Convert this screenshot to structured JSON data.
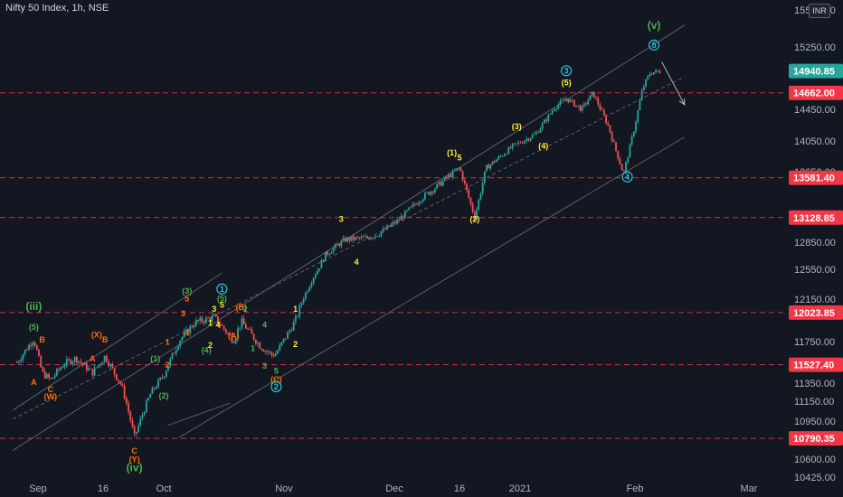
{
  "header": {
    "title": "Nifty 50 Index, 1h, NSE",
    "currency": "INR"
  },
  "colors": {
    "background": "#131722",
    "up": "#26a69a",
    "down": "#ef5350",
    "level_line": "#f23645",
    "channel": "#5d606b",
    "price_badge": "#26a69a",
    "level_badge": "#f23645",
    "wave_green": "#4caf50",
    "wave_yellow": "#ffeb3b",
    "wave_orange": "#ff6d00",
    "wave_cyan": "#26c6da"
  },
  "chart_data": {
    "type": "line",
    "title": "Nifty 50 Index, 1h, NSE",
    "y_axis_ticks": [
      15550.0,
      15250.0,
      14450.0,
      14050.0,
      13650.0,
      12850.0,
      12550.0,
      12150.0,
      11750.0,
      11350.0,
      11150.0,
      10950.0,
      10600.0,
      10425.0
    ],
    "ylim": [
      10380,
      15700
    ],
    "x_axis_ticks": [
      "Sep",
      "16",
      "Oct",
      "Nov",
      "Dec",
      "16",
      "2021",
      "Feb",
      "Mar"
    ],
    "current_price": 14940.85,
    "horizontal_levels": [
      14662.0,
      13581.4,
      13128.85,
      12023.85,
      11527.4,
      10790.35
    ],
    "price_path": [
      [
        "2020-08-27",
        11550
      ],
      [
        "2020-08-31",
        11780
      ],
      [
        "2020-09-02",
        11450
      ],
      [
        "2020-09-04",
        11380
      ],
      [
        "2020-09-07",
        11530
      ],
      [
        "2020-09-10",
        11590
      ],
      [
        "2020-09-14",
        11450
      ],
      [
        "2020-09-17",
        11610
      ],
      [
        "2020-09-21",
        11320
      ],
      [
        "2020-09-24",
        10800
      ],
      [
        "2020-09-28",
        11250
      ],
      [
        "2020-10-01",
        11430
      ],
      [
        "2020-10-05",
        11760
      ],
      [
        "2020-10-09",
        11930
      ],
      [
        "2020-10-14",
        11980
      ],
      [
        "2020-10-19",
        11760
      ],
      [
        "2020-10-21",
        11940
      ],
      [
        "2020-10-26",
        11700
      ],
      [
        "2020-10-29",
        11620
      ],
      [
        "2020-10-30",
        11640
      ],
      [
        "2020-11-04",
        11950
      ],
      [
        "2020-11-09",
        12480
      ],
      [
        "2020-11-12",
        12720
      ],
      [
        "2020-11-17",
        12880
      ],
      [
        "2020-11-23",
        12900
      ],
      [
        "2020-11-26",
        12950
      ],
      [
        "2020-12-01",
        13100
      ],
      [
        "2020-12-07",
        13350
      ],
      [
        "2020-12-11",
        13480
      ],
      [
        "2020-12-17",
        13700
      ],
      [
        "2020-12-21",
        13130
      ],
      [
        "2020-12-24",
        13700
      ],
      [
        "2020-12-31",
        13980
      ],
      [
        "2021-01-06",
        14140
      ],
      [
        "2021-01-11",
        14480
      ],
      [
        "2021-01-14",
        14590
      ],
      [
        "2021-01-18",
        14450
      ],
      [
        "2021-01-21",
        14660
      ],
      [
        "2021-01-25",
        14240
      ],
      [
        "2021-01-29",
        13620
      ],
      [
        "2021-02-01",
        14250
      ],
      [
        "2021-02-03",
        14720
      ],
      [
        "2021-02-05",
        14920
      ],
      [
        "2021-02-08",
        14940.85
      ]
    ],
    "wave_labels": [
      {
        "text": "(iii)",
        "date": "2020-08-31",
        "price": 12050,
        "color": "green",
        "size": "big"
      },
      {
        "text": "(5)",
        "date": "2020-08-31",
        "price": 11860,
        "color": "green"
      },
      {
        "text": "B",
        "date": "2020-09-02",
        "price": 11740,
        "color": "orange"
      },
      {
        "text": "A",
        "date": "2020-08-31",
        "price": 11330,
        "color": "orange"
      },
      {
        "text": "C",
        "date": "2020-09-04",
        "price": 11250,
        "color": "orange"
      },
      {
        "text": "(W)",
        "date": "2020-09-04",
        "price": 11170,
        "color": "orange"
      },
      {
        "text": "(X)",
        "date": "2020-09-15",
        "price": 11790,
        "color": "orange"
      },
      {
        "text": "B",
        "date": "2020-09-17",
        "price": 11740,
        "color": "orange"
      },
      {
        "text": "A",
        "date": "2020-09-14",
        "price": 11560,
        "color": "orange"
      },
      {
        "text": "C",
        "date": "2020-09-24",
        "price": 10650,
        "color": "orange"
      },
      {
        "text": "(Y)",
        "date": "2020-09-24",
        "price": 10570,
        "color": "orange"
      },
      {
        "text": "(iv)",
        "date": "2020-09-24",
        "price": 10480,
        "color": "green",
        "size": "big"
      },
      {
        "text": "(1)",
        "date": "2020-09-29",
        "price": 11560,
        "color": "green"
      },
      {
        "text": "(2)",
        "date": "2020-10-01",
        "price": 11180,
        "color": "green"
      },
      {
        "text": "1",
        "date": "2020-10-02",
        "price": 11720,
        "color": "orange"
      },
      {
        "text": "2",
        "date": "2020-10-02",
        "price": 11500,
        "color": "orange"
      },
      {
        "text": "(3)",
        "date": "2020-10-07",
        "price": 12220,
        "color": "green"
      },
      {
        "text": "5",
        "date": "2020-10-07",
        "price": 12130,
        "color": "orange"
      },
      {
        "text": "3",
        "date": "2020-10-06",
        "price": 11990,
        "color": "orange"
      },
      {
        "text": "4",
        "date": "2020-10-07",
        "price": 11800,
        "color": "orange"
      },
      {
        "text": "(4)",
        "date": "2020-10-12",
        "price": 11640,
        "color": "green"
      },
      {
        "text": "2",
        "date": "2020-10-13",
        "price": 11690,
        "color": "yellow"
      },
      {
        "text": "3",
        "date": "2020-10-14",
        "price": 12030,
        "color": "yellow"
      },
      {
        "text": "4",
        "date": "2020-10-15",
        "price": 11880,
        "color": "yellow"
      },
      {
        "text": "1",
        "date": "2020-10-13",
        "price": 11900,
        "color": "yellow"
      },
      {
        "text": "1",
        "date": "2020-10-16",
        "price": 12250,
        "color": "cyan",
        "circle": true
      },
      {
        "text": "(5)",
        "date": "2020-10-16",
        "price": 12130,
        "color": "green"
      },
      {
        "text": "5",
        "date": "2020-10-16",
        "price": 12070,
        "color": "yellow"
      },
      {
        "text": "(B)",
        "date": "2020-10-21",
        "price": 12050,
        "color": "orange"
      },
      {
        "text": "2",
        "date": "2020-10-22",
        "price": 12030,
        "color": "green"
      },
      {
        "text": "(A)",
        "date": "2020-10-19",
        "price": 11780,
        "color": "orange"
      },
      {
        "text": "4",
        "date": "2020-10-27",
        "price": 11880,
        "color": "green"
      },
      {
        "text": "1",
        "date": "2020-10-24",
        "price": 11660,
        "color": "green"
      },
      {
        "text": "3",
        "date": "2020-10-27",
        "price": 11490,
        "color": "green"
      },
      {
        "text": "5",
        "date": "2020-10-30",
        "price": 11440,
        "color": "green"
      },
      {
        "text": "(C)",
        "date": "2020-10-30",
        "price": 11360,
        "color": "orange"
      },
      {
        "text": "2",
        "date": "2020-10-30",
        "price": 11280,
        "color": "cyan",
        "circle": true
      },
      {
        "text": "1",
        "date": "2020-11-04",
        "price": 12030,
        "color": "yellow"
      },
      {
        "text": "2",
        "date": "2020-11-04",
        "price": 11700,
        "color": "yellow"
      },
      {
        "text": "3",
        "date": "2020-11-16",
        "price": 13080,
        "color": "yellow"
      },
      {
        "text": "4",
        "date": "2020-11-20",
        "price": 12600,
        "color": "yellow"
      },
      {
        "text": "(1)",
        "date": "2020-12-15",
        "price": 13860,
        "color": "yellow"
      },
      {
        "text": "5",
        "date": "2020-12-17",
        "price": 13800,
        "color": "yellow"
      },
      {
        "text": "(2)",
        "date": "2020-12-21",
        "price": 13080,
        "color": "yellow"
      },
      {
        "text": "(3)",
        "date": "2021-01-01",
        "price": 14200,
        "color": "yellow"
      },
      {
        "text": "(4)",
        "date": "2021-01-08",
        "price": 13950,
        "color": "yellow"
      },
      {
        "text": "3",
        "date": "2021-01-14",
        "price": 14910,
        "color": "cyan",
        "circle": true
      },
      {
        "text": "(5)",
        "date": "2021-01-14",
        "price": 14760,
        "color": "yellow"
      },
      {
        "text": "4",
        "date": "2021-01-30",
        "price": 13560,
        "color": "cyan",
        "circle": true
      },
      {
        "text": "(v)",
        "date": "2021-02-06",
        "price": 15480,
        "color": "green",
        "size": "big"
      },
      {
        "text": "5",
        "date": "2021-02-06",
        "price": 15240,
        "color": "cyan",
        "circle": true
      }
    ],
    "channels": [
      {
        "from": [
          "2020-08-26",
          10680
        ],
        "to": [
          "2021-02-14",
          15530
        ]
      },
      {
        "from": [
          "2020-10-05",
          10800
        ],
        "to": [
          "2021-02-14",
          14100
        ]
      },
      {
        "from": [
          "2020-08-26",
          10970
        ],
        "to": [
          "2021-02-14",
          14870
        ]
      },
      {
        "from": [
          "2020-08-26",
          11060
        ],
        "to": [
          "2020-10-16",
          12500
        ]
      },
      {
        "from": [
          "2020-10-02",
          10910
        ],
        "to": [
          "2020-10-18",
          11130
        ]
      }
    ],
    "projection_arrow": {
      "from": [
        "2021-02-08",
        15060
      ],
      "to": [
        "2021-02-14",
        14510
      ]
    },
    "grid": false
  }
}
